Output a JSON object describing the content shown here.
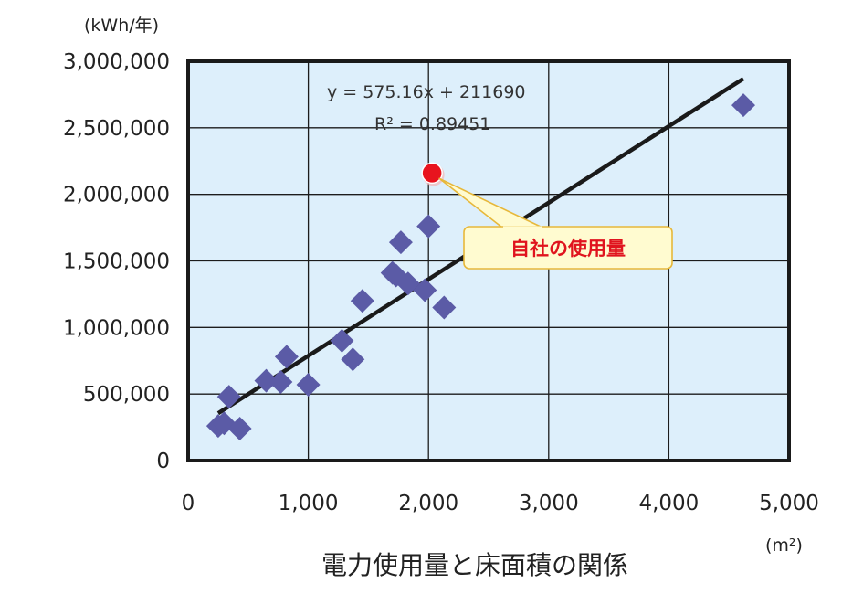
{
  "chart_data": {
    "type": "scatter",
    "title": "電力使用量と床面積の関係",
    "xlabel": "(m²)",
    "ylabel": "(kWh/年)",
    "xlim": [
      0,
      5000
    ],
    "ylim": [
      0,
      3000000
    ],
    "x_ticks": [
      0,
      1000,
      2000,
      3000,
      4000,
      5000
    ],
    "x_tick_labels": [
      "0",
      "1,000",
      "2,000",
      "3,000",
      "4,000",
      "5,000"
    ],
    "y_ticks": [
      0,
      500000,
      1000000,
      1500000,
      2000000,
      2500000,
      3000000
    ],
    "y_tick_labels": [
      "0",
      "500,000",
      "1,000,000",
      "1,500,000",
      "2,000,000",
      "2,500,000",
      "3,000,000"
    ],
    "grid": true,
    "background_color": "#ddeffb",
    "series": [
      {
        "color": "#5b5ba6",
        "marker": "diamond",
        "points": [
          {
            "x": 250,
            "y": 260000
          },
          {
            "x": 300,
            "y": 280000
          },
          {
            "x": 340,
            "y": 480000
          },
          {
            "x": 430,
            "y": 240000
          },
          {
            "x": 650,
            "y": 600000
          },
          {
            "x": 770,
            "y": 590000
          },
          {
            "x": 820,
            "y": 780000
          },
          {
            "x": 1000,
            "y": 570000
          },
          {
            "x": 1280,
            "y": 900000
          },
          {
            "x": 1370,
            "y": 760000
          },
          {
            "x": 1450,
            "y": 1200000
          },
          {
            "x": 1700,
            "y": 1410000
          },
          {
            "x": 1730,
            "y": 1390000
          },
          {
            "x": 1770,
            "y": 1640000
          },
          {
            "x": 1830,
            "y": 1330000
          },
          {
            "x": 1970,
            "y": 1280000
          },
          {
            "x": 2000,
            "y": 1760000
          },
          {
            "x": 2130,
            "y": 1150000
          },
          {
            "x": 4620,
            "y": 2670000
          }
        ]
      },
      {
        "color": "#e8141e",
        "marker": "circle",
        "points": [
          {
            "x": 2030,
            "y": 2160000
          }
        ]
      }
    ],
    "trendline": {
      "equation": "y = 575.16x + 211690",
      "r_squared": "R² = 0.89451",
      "slope": 575.16,
      "intercept": 211690,
      "x_range": [
        250,
        4620
      ],
      "color": "#1a1a1a"
    },
    "annotations": [
      {
        "text": "自社の使用量",
        "target": {
          "x": 2030,
          "y": 2160000
        },
        "color": "#e0141e",
        "box_fill": "#fffbd0",
        "box_border": "#e7b83a"
      }
    ]
  }
}
